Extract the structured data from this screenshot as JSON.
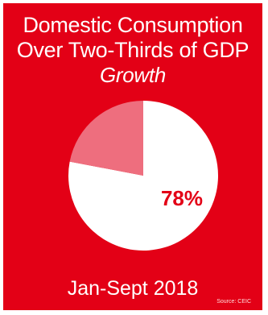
{
  "title_lines": [
    "Domestic Consumption",
    "Over Two-Thirds of GDP",
    "Growth"
  ],
  "period": "Jan-Sept 2018",
  "source": "Source: CEIC",
  "colors": {
    "background": "#e30016",
    "main_slice": "#ffffff",
    "rest_slice": "#ee6e7e",
    "label": "#e30016"
  },
  "chart_data": {
    "type": "pie",
    "title": "Domestic Consumption Over Two-Thirds of GDP Growth",
    "slices": [
      {
        "label": "78%",
        "value": 78,
        "color": "#ffffff"
      },
      {
        "label": "",
        "value": 22,
        "color": "#ee6e7e"
      }
    ]
  }
}
